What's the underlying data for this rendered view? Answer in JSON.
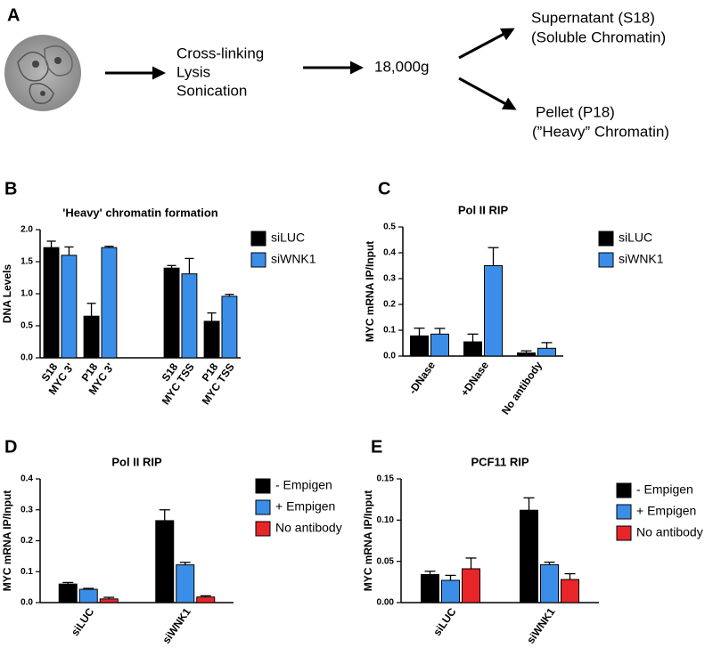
{
  "diagram": {
    "panel": "A",
    "step1": [
      "Cross-linking",
      "Lysis",
      "Sonication"
    ],
    "step2": "18,000g",
    "supernatant": [
      "Supernatant (S18)",
      "(Soluble Chromatin)"
    ],
    "pellet": [
      "Pellet (P18)",
      "(”Heavy” Chromatin)"
    ]
  },
  "chart_data": [
    {
      "type": "bar",
      "panel": "B",
      "title": "'Heavy' chromatin formation",
      "y_label": "DNA Levels",
      "categories": [
        [
          "S18",
          "MYC 3'"
        ],
        [
          "P18",
          "MYC 3'"
        ],
        null,
        [
          "S18",
          "MYC TSS"
        ],
        [
          "P18",
          "MYC TSS"
        ]
      ],
      "series": [
        {
          "name": "siLUC",
          "color": "#000000",
          "values": [
            1.72,
            0.65,
            null,
            1.4,
            0.57
          ],
          "errors": [
            0.1,
            0.2,
            null,
            0.04,
            0.13
          ]
        },
        {
          "name": "siWNK1",
          "color": "#3b8ee8",
          "values": [
            1.6,
            1.72,
            null,
            1.31,
            0.96
          ],
          "errors": [
            0.13,
            0.02,
            null,
            0.24,
            0.03
          ]
        }
      ],
      "ylim": [
        0,
        2.0
      ],
      "yticks": [
        {
          "value": 0,
          "label": "0.0"
        },
        0.5,
        {
          "value": 1,
          "label": "1.0"
        },
        1.5,
        {
          "value": 2,
          "label": "2.0"
        }
      ]
    },
    {
      "type": "bar",
      "panel": "C",
      "title": "Pol II RIP",
      "y_label": "MYC mRNA IP/Input",
      "categories": [
        [
          "-DNase"
        ],
        [
          "+DNase"
        ],
        [
          "No antibody"
        ]
      ],
      "series": [
        {
          "name": "siLUC",
          "color": "#000000",
          "values": [
            0.078,
            0.055,
            0.012
          ],
          "errors": [
            0.03,
            0.03,
            0.008
          ]
        },
        {
          "name": "siWNK1",
          "color": "#3b8ee8",
          "values": [
            0.085,
            0.35,
            0.03
          ],
          "errors": [
            0.022,
            0.07,
            0.022
          ]
        }
      ],
      "ylim": [
        0,
        0.5
      ],
      "yticks": [
        {
          "value": 0,
          "label": "0.0"
        },
        0.1,
        0.2,
        0.3,
        0.4,
        0.5
      ]
    },
    {
      "type": "bar",
      "panel": "D",
      "title": "Pol II RIP",
      "y_label": "MYC mRNA IP/Input",
      "categories": [
        [
          "siLUC"
        ],
        [
          "siWNK1"
        ]
      ],
      "series": [
        {
          "name": "- Empigen",
          "color": "#000000",
          "values": [
            0.06,
            0.265
          ],
          "errors": [
            0.005,
            0.035
          ]
        },
        {
          "name": "+ Empigen",
          "color": "#3b8ee8",
          "values": [
            0.043,
            0.122
          ],
          "errors": [
            0.003,
            0.008
          ]
        },
        {
          "name": "No antibody",
          "color": "#e8262a",
          "values": [
            0.012,
            0.018
          ],
          "errors": [
            0.005,
            0.004
          ]
        }
      ],
      "ylim": [
        0,
        0.4
      ],
      "yticks": [
        {
          "value": 0,
          "label": "0.0"
        },
        0.1,
        0.2,
        0.3,
        0.4
      ]
    },
    {
      "type": "bar",
      "panel": "E",
      "title": "PCF11 RIP",
      "y_label": "MYC mRNA IP/Input",
      "categories": [
        [
          "siLUC"
        ],
        [
          "siWNK1"
        ]
      ],
      "series": [
        {
          "name": "- Empigen",
          "color": "#000000",
          "values": [
            0.034,
            0.112
          ],
          "errors": [
            0.004,
            0.015
          ]
        },
        {
          "name": "+ Empigen",
          "color": "#3b8ee8",
          "values": [
            0.027,
            0.046
          ],
          "errors": [
            0.006,
            0.003
          ]
        },
        {
          "name": "No antibody",
          "color": "#e8262a",
          "values": [
            0.041,
            0.028
          ],
          "errors": [
            0.013,
            0.007
          ]
        }
      ],
      "ylim": [
        0,
        0.15
      ],
      "yticks": [
        {
          "value": 0,
          "label": "0.00"
        },
        0.05,
        {
          "value": 0.1,
          "label": "0.10"
        },
        0.15
      ]
    }
  ]
}
